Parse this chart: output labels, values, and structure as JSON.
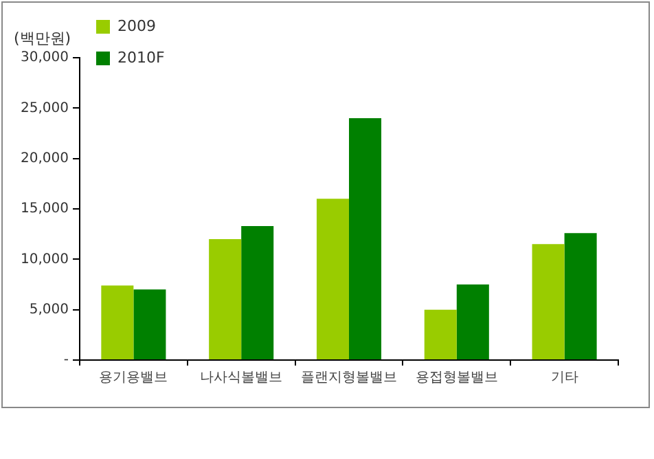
{
  "chart_data": {
    "type": "bar",
    "ylabel": "(백만원)",
    "categories": [
      "용기용밸브",
      "나사식볼밸브",
      "플랜지형볼밸브",
      "용접형볼밸브",
      "기타"
    ],
    "series": [
      {
        "name": "2009",
        "color": "#99cc00",
        "values": [
          7400,
          12000,
          16000,
          5000,
          11500
        ]
      },
      {
        "name": "2010F",
        "color": "#008000",
        "values": [
          7000,
          13300,
          24000,
          7500,
          12600
        ]
      }
    ],
    "ylim": [
      0,
      30000
    ],
    "yticks": [
      {
        "value": 0,
        "label": "-"
      },
      {
        "value": 5000,
        "label": "5,000"
      },
      {
        "value": 10000,
        "label": "10,000"
      },
      {
        "value": 15000,
        "label": "15,000"
      },
      {
        "value": 20000,
        "label": "20,000"
      },
      {
        "value": 25000,
        "label": "25,000"
      },
      {
        "value": 30000,
        "label": "30,000"
      }
    ],
    "grid": false,
    "legend": "top left"
  }
}
